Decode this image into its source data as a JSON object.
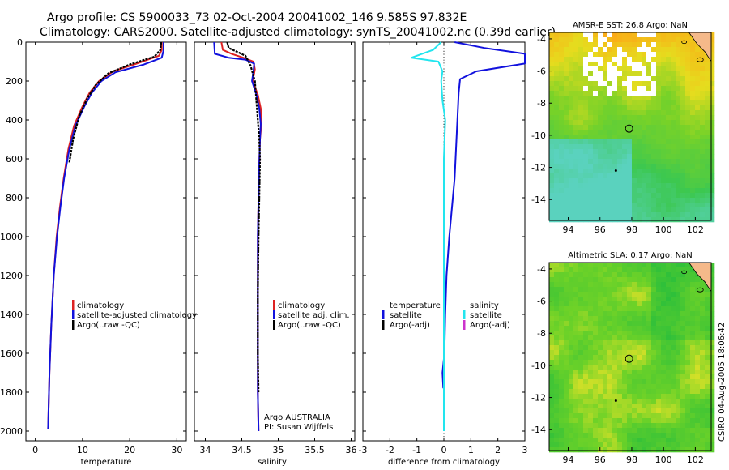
{
  "header": {
    "line1": "Argo profile: CS 5900033_73 02-Oct-2004 20041002_146 9.585S 97.832E",
    "line2": "Climatology: CARS2000. Satellite-adjusted climatology: synTS_20041002.nc (0.39d earlier)"
  },
  "side_label": "CSIRO 04-Aug-2005 18:06:42",
  "colors": {
    "clim": "#dd2222",
    "sat": "#1111dd",
    "argo": "#000000",
    "cyan": "#22e5ee",
    "magenta": "#cc33cc"
  },
  "chart_data": [
    {
      "type": "line",
      "id": "temperature",
      "xlabel": "temperature",
      "xlim": [
        -2,
        32
      ],
      "ylim": [
        0,
        2050
      ],
      "xticks": [
        0,
        10,
        20,
        30
      ],
      "yticks": [
        0,
        200,
        400,
        600,
        800,
        1000,
        1200,
        1400,
        1600,
        1800,
        2000
      ],
      "legend": [
        "climatology",
        "satellite-adjusted climatology",
        "Argo(..raw -QC)"
      ],
      "series": [
        {
          "name": "climatology",
          "color": "#dd2222",
          "x": [
            26.8,
            26.8,
            26.2,
            21.5,
            16.5,
            13.5,
            11.5,
            10.0,
            8.2,
            7.0,
            6.0,
            5.2,
            4.5,
            3.9,
            3.4,
            3.0,
            2.7
          ],
          "y": [
            0,
            40,
            70,
            110,
            150,
            200,
            260,
            330,
            430,
            550,
            700,
            850,
            1000,
            1200,
            1450,
            1700,
            1990
          ]
        },
        {
          "name": "satellite-adjusted climatology",
          "color": "#1111dd",
          "x": [
            27.2,
            27.2,
            26.8,
            23.0,
            17.0,
            14.0,
            12.0,
            10.4,
            8.5,
            7.2,
            6.1,
            5.3,
            4.6,
            3.9,
            3.4,
            3.0,
            2.7
          ],
          "y": [
            0,
            40,
            80,
            115,
            155,
            200,
            260,
            330,
            430,
            550,
            700,
            850,
            1000,
            1200,
            1450,
            1700,
            1990
          ]
        },
        {
          "name": "Argo(..raw -QC)",
          "color": "#000000",
          "x": [
            26.7,
            26.5,
            25.2,
            20.0,
            15.5,
            12.8,
            11.0,
            9.3,
            8.0,
            7.2
          ],
          "y": [
            0,
            40,
            75,
            115,
            160,
            220,
            290,
            380,
            500,
            620
          ]
        }
      ],
      "annotations": []
    },
    {
      "type": "line",
      "id": "salinity",
      "xlabel": "salinity",
      "xlim": [
        33.85,
        36.05
      ],
      "ylim": [
        0,
        2050
      ],
      "xticks": [
        34,
        34.5,
        35,
        35.5,
        36
      ],
      "yticks": [
        0,
        200,
        400,
        600,
        800,
        1000,
        1200,
        1400,
        1600,
        1800,
        2000
      ],
      "legend": [
        "climatology",
        "satellite adj. clim.",
        "Argo(..raw -QC)"
      ],
      "series": [
        {
          "name": "climatology",
          "color": "#dd2222",
          "x": [
            34.22,
            34.24,
            34.36,
            34.52,
            34.66,
            34.68,
            34.65,
            34.72,
            34.76,
            34.77,
            34.75,
            34.74,
            34.73,
            34.72,
            34.72,
            34.72,
            34.72,
            34.73
          ],
          "y": [
            0,
            40,
            60,
            80,
            100,
            140,
            200,
            270,
            340,
            420,
            500,
            620,
            800,
            1000,
            1200,
            1500,
            1800,
            2000
          ]
        },
        {
          "name": "satellite adj. clim.",
          "color": "#1111dd",
          "x": [
            34.12,
            34.13,
            34.32,
            34.55,
            34.67,
            34.66,
            34.64,
            34.7,
            34.74,
            34.76,
            34.75,
            34.74,
            34.73,
            34.72,
            34.72,
            34.72,
            34.72,
            34.73
          ],
          "y": [
            0,
            60,
            80,
            90,
            110,
            150,
            200,
            270,
            340,
            420,
            500,
            620,
            800,
            1000,
            1200,
            1500,
            1800,
            2000
          ]
        },
        {
          "name": "Argo(..raw -QC)",
          "color": "#000000",
          "x": [
            34.3,
            34.32,
            34.55,
            34.62,
            34.68,
            34.7,
            34.72,
            34.74,
            34.75,
            34.74,
            34.73,
            34.72,
            34.72,
            34.73
          ],
          "y": [
            0,
            30,
            70,
            120,
            200,
            300,
            400,
            500,
            600,
            800,
            1000,
            1300,
            1600,
            1800
          ]
        }
      ],
      "annotations": [
        "Argo AUSTRALIA",
        "PI: Susan Wijffels"
      ]
    },
    {
      "type": "line",
      "id": "difference",
      "xlabel": "difference from climatology",
      "xlim": [
        -3,
        3
      ],
      "ylim": [
        0,
        2050
      ],
      "xticks": [
        -3,
        -2,
        -1,
        0,
        1,
        2,
        3
      ],
      "yticks": [
        0,
        200,
        400,
        600,
        800,
        1000,
        1200,
        1400,
        1600,
        1800,
        2000
      ],
      "legend_left": [
        "temperature",
        "satellite",
        "Argo(-adj)"
      ],
      "legend_right": [
        "salinity",
        "satellite",
        "Argo(-adj)"
      ],
      "series": [
        {
          "name": "temperature satellite",
          "color": "#1111dd",
          "x": [
            0.4,
            1.5,
            3.0,
            3.0,
            1.2,
            0.6,
            0.55,
            0.5,
            0.45,
            0.4,
            0.3,
            0.2,
            0.1,
            0.05,
            0.02,
            -0.05,
            -0.02
          ],
          "y": [
            0,
            30,
            60,
            110,
            150,
            190,
            260,
            400,
            550,
            700,
            850,
            1000,
            1200,
            1400,
            1600,
            1700,
            1780
          ]
        },
        {
          "name": "salinity satellite",
          "color": "#22e5ee",
          "x": [
            -0.1,
            -0.4,
            -1.2,
            -0.2,
            -0.05,
            -0.1,
            -0.05,
            0.05,
            0.0,
            0.0,
            0.0,
            0.0,
            0.0,
            0.0
          ],
          "y": [
            0,
            40,
            80,
            100,
            150,
            200,
            300,
            400,
            600,
            800,
            1100,
            1500,
            1800,
            2000
          ]
        }
      ],
      "annotations": []
    }
  ],
  "maps": [
    {
      "id": "sst",
      "title": "AMSR-E SST: 26.8 Argo: NaN",
      "xticks": [
        94,
        96,
        98,
        100,
        102
      ],
      "yticks": [
        -4,
        -6,
        -8,
        -10,
        -12,
        -14
      ],
      "xlim": [
        92.8,
        103.0
      ],
      "ylim": [
        -15.3,
        -3.6
      ],
      "float_lon": 97.832,
      "float_lat": -9.585
    },
    {
      "id": "sla",
      "title": "Altimetric SLA: 0.17 Argo: NaN",
      "xticks": [
        94,
        96,
        98,
        100,
        102
      ],
      "yticks": [
        -4,
        -6,
        -8,
        -10,
        -12,
        -14
      ],
      "xlim": [
        92.8,
        103.0
      ],
      "ylim": [
        -15.3,
        -3.6
      ],
      "float_lon": 97.832,
      "float_lat": -9.585
    }
  ]
}
